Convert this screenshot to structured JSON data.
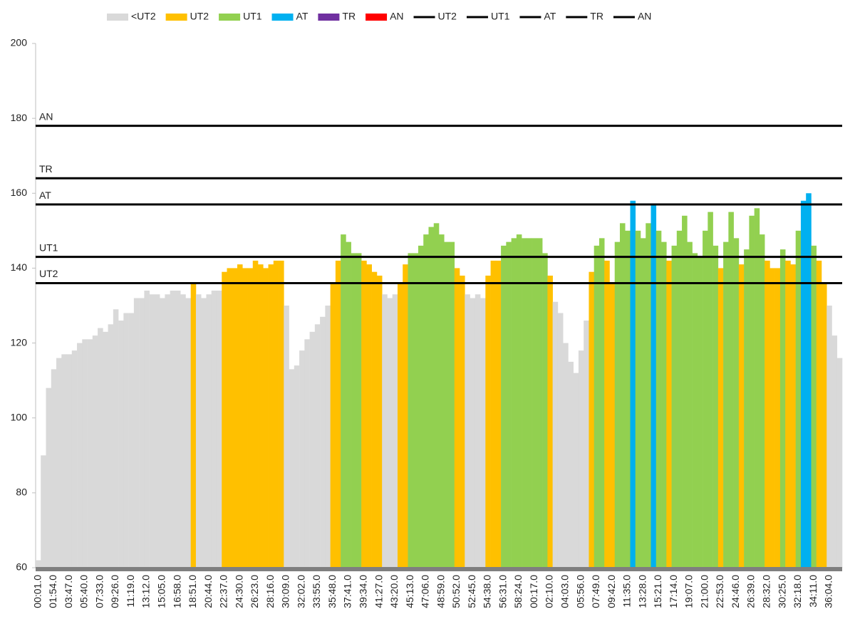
{
  "chart_data": {
    "type": "bar",
    "ylim": [
      60,
      200
    ],
    "yticks": [
      60,
      80,
      100,
      120,
      140,
      160,
      180,
      200
    ],
    "categories": [
      "00:01.0",
      null,
      null,
      "01:54.0",
      null,
      null,
      "03:47.0",
      null,
      null,
      "05:40.0",
      null,
      null,
      "07:33.0",
      null,
      null,
      "09:26.0",
      null,
      null,
      "11:19.0",
      null,
      null,
      "13:12.0",
      null,
      null,
      "15:05.0",
      null,
      null,
      "16:58.0",
      null,
      null,
      "18:51.0",
      null,
      null,
      "20:44.0",
      null,
      null,
      "22:37.0",
      null,
      null,
      "24:30.0",
      null,
      null,
      "26:23.0",
      null,
      null,
      "28:16.0",
      null,
      null,
      "30:09.0",
      null,
      null,
      "32:02.0",
      null,
      null,
      "33:55.0",
      null,
      null,
      "35:48.0",
      null,
      null,
      "37:41.0",
      null,
      null,
      "39:34.0",
      null,
      null,
      "41:27.0",
      null,
      null,
      "43:20.0",
      null,
      null,
      "45:13.0",
      null,
      null,
      "47:06.0",
      null,
      null,
      "48:59.0",
      null,
      null,
      "50:52.0",
      null,
      null,
      "52:45.0",
      null,
      null,
      "54:38.0",
      null,
      null,
      "56:31.0",
      null,
      null,
      "58:24.0",
      null,
      null,
      "00:17.0",
      null,
      null,
      "02:10.0",
      null,
      null,
      "04:03.0",
      null,
      null,
      "05:56.0",
      null,
      null,
      "07:49.0",
      null,
      null,
      "09:42.0",
      null,
      null,
      "11:35.0",
      null,
      null,
      "13:28.0",
      null,
      null,
      "15:21.0",
      null,
      null,
      "17:14.0",
      null,
      null,
      "19:07.0",
      null,
      null,
      "21:00.0",
      null,
      null,
      "22:53.0",
      null,
      null,
      "24:46.0",
      null,
      null,
      "26:39.0",
      null,
      null,
      "28:32.0",
      null,
      null,
      "30:25.0",
      null,
      null,
      "32:18.0",
      null,
      null,
      "34:11.0",
      null,
      null,
      "36:04.0",
      null,
      null
    ],
    "values": [
      62,
      90,
      108,
      113,
      116,
      117,
      117,
      118,
      120,
      121,
      121,
      122,
      124,
      123,
      125,
      129,
      126,
      128,
      128,
      132,
      132,
      134,
      133,
      133,
      132,
      133,
      134,
      134,
      133,
      132,
      136,
      133,
      132,
      133,
      134,
      134,
      139,
      140,
      140,
      141,
      140,
      140,
      142,
      141,
      140,
      141,
      142,
      142,
      130,
      113,
      114,
      118,
      121,
      123,
      125,
      127,
      130,
      136,
      142,
      149,
      147,
      144,
      144,
      142,
      141,
      139,
      138,
      133,
      132,
      133,
      136,
      141,
      144,
      144,
      146,
      149,
      151,
      152,
      149,
      147,
      147,
      140,
      138,
      133,
      132,
      133,
      132,
      138,
      142,
      142,
      146,
      147,
      148,
      149,
      148,
      148,
      148,
      148,
      144,
      138,
      131,
      128,
      120,
      115,
      112,
      118,
      126,
      139,
      146,
      148,
      142,
      136,
      147,
      152,
      150,
      158,
      150,
      148,
      152,
      157,
      150,
      147,
      142,
      146,
      150,
      154,
      147,
      144,
      143,
      150,
      155,
      146,
      140,
      147,
      155,
      148,
      141,
      145,
      154,
      156,
      149,
      142,
      140,
      140,
      145,
      142,
      141,
      150,
      158,
      160,
      146,
      142,
      136,
      130,
      122,
      116
    ],
    "zones": [
      {
        "name": "<UT2",
        "color": "#d9d9d9"
      },
      {
        "name": "UT2",
        "color": "#ffc000"
      },
      {
        "name": "UT1",
        "color": "#92d050"
      },
      {
        "name": "AT",
        "color": "#00b0f0"
      },
      {
        "name": "TR",
        "color": "#7030a0"
      },
      {
        "name": "AN",
        "color": "#ff0000"
      }
    ],
    "lines": [
      {
        "name": "UT2",
        "value": 136,
        "color": "#000000"
      },
      {
        "name": "UT1",
        "value": 143,
        "color": "#000000"
      },
      {
        "name": "AT",
        "value": 157,
        "color": "#000000"
      },
      {
        "name": "TR",
        "value": 164,
        "color": "#000000"
      },
      {
        "name": "AN",
        "value": 178,
        "color": "#000000"
      }
    ],
    "grid": false
  }
}
